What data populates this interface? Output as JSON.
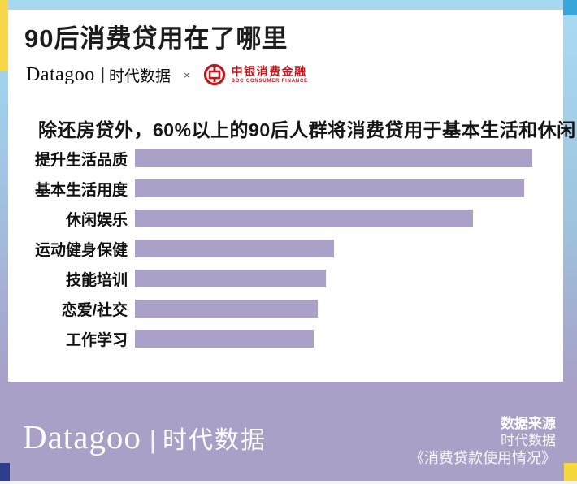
{
  "colors": {
    "bar": "#a9a1c7",
    "footer_bg": "#a8a0c6",
    "top_strip": "#a6d9f1",
    "corner_top_right": "#38a6db",
    "left_yellow": "#f6d74b",
    "corner_bottom_left": "#2f3e8c",
    "corner_bottom_right": "#f6d73e",
    "boc_red": "#c0161d"
  },
  "header": {
    "title": "90后消费贷用在了哪里",
    "brand": "Datagoo",
    "brand_divider": "|",
    "brand_cn": "时代数据",
    "collab_mark": "×",
    "partner": "中银消费金融",
    "partner_sub": "BOC CONSUMER FINANCE"
  },
  "subtitle": "除还房贷外，60%以上的90后人群将消费贷用于基本生活和休闲",
  "chart_data": {
    "type": "bar",
    "orientation": "horizontal",
    "title": "90后消费贷用在了哪里",
    "annotation": "除还房贷外，60%以上的90后人群将消费贷用于基本生活和休闲",
    "categories": [
      "提升生活品质",
      "基本生活用度",
      "休闲娱乐",
      "运动健身保健",
      "技能培训",
      "恋爱/社交",
      "工作学习"
    ],
    "values": [
      100,
      98,
      85,
      50,
      48,
      46,
      45
    ],
    "value_note": "no numeric axis, gridlines or data labels are shown in the image; values are estimated relative bar lengths as % of the longest bar",
    "bar_color": "#a9a1c7",
    "grid": false,
    "legend": false,
    "axis_labels": false
  },
  "footer": {
    "brand": "Datagoo",
    "brand_divider": "|",
    "brand_cn": "时代数据",
    "source_label": "数据来源",
    "source_lines": [
      "时代数据",
      "《消费贷款使用情况》"
    ]
  }
}
